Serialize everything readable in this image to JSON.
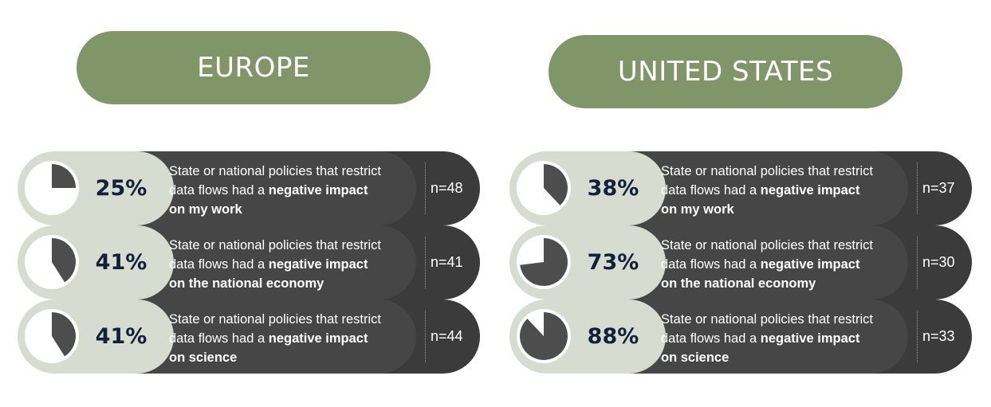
{
  "regions": [
    {
      "title": "EUROPE",
      "rows": [
        {
          "percent": 25,
          "label": "25%",
          "line1": "State or national policies that restrict",
          "line2_plain": "data flows had a ",
          "line2_bold": "negative impact",
          "line3_bold": "on my work",
          "n": "n=48"
        },
        {
          "percent": 41,
          "label": "41%",
          "line1": "State or national policies that restrict",
          "line2_plain": "data flows had a ",
          "line2_bold": "negative impact",
          "line3_bold": "on the national economy",
          "n": "n=41"
        },
        {
          "percent": 41,
          "label": "41%",
          "line1": "State or national policies that restrict",
          "line2_plain": "data flows had a ",
          "line2_bold": "negative impact",
          "line3_bold": "on science",
          "n": "n=44"
        }
      ]
    },
    {
      "title": "UNITED STATES",
      "rows": [
        {
          "percent": 38,
          "label": "38%",
          "line1": "State or national policies that restrict",
          "line2_plain": "data flows had a ",
          "line2_bold": "negative impact",
          "line3_bold": "on my work",
          "n": "n=37"
        },
        {
          "percent": 73,
          "label": "73%",
          "line1": "State or national policies that restrict",
          "line2_plain": "data flows had a ",
          "line2_bold": "negative impact",
          "line3_bold": "on the national economy",
          "n": "n=30"
        },
        {
          "percent": 88,
          "label": "88%",
          "line1": "State or national policies that restrict",
          "line2_plain": "data flows had a ",
          "line2_bold": "negative impact",
          "line3_bold": "on science",
          "n": "n=33"
        }
      ]
    }
  ],
  "colors": {
    "title_pill": "#809668",
    "light_pill": "#d6ddd0",
    "dark_pill": "#3b3b3b",
    "pie_fill": "#4d4d4d",
    "percent_text": "#13203a"
  },
  "chart_data": [
    {
      "type": "pie",
      "title": "EUROPE",
      "categories": [
        "State or national policies that restrict data flows had a negative impact on my work",
        "State or national policies that restrict data flows had a negative impact on the national economy",
        "State or national policies that restrict data flows had a negative impact on science"
      ],
      "values": [
        25,
        41,
        41
      ],
      "n": [
        48,
        41,
        44
      ]
    },
    {
      "type": "pie",
      "title": "UNITED STATES",
      "categories": [
        "State or national policies that restrict data flows had a negative impact on my work",
        "State or national policies that restrict data flows had a negative impact on the national economy",
        "State or national policies that restrict data flows had a negative impact on science"
      ],
      "values": [
        38,
        73,
        88
      ],
      "n": [
        37,
        30,
        33
      ]
    }
  ]
}
